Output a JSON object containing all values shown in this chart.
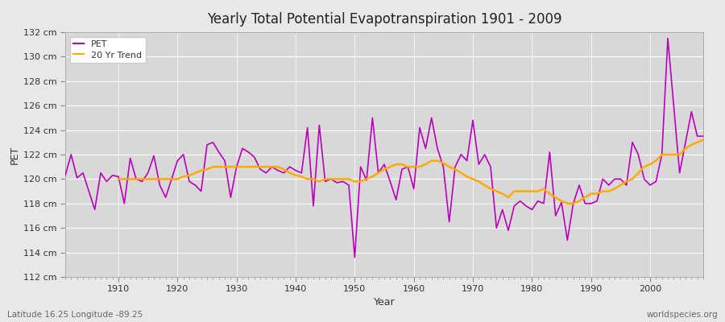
{
  "title": "Yearly Total Potential Evapotranspiration 1901 - 2009",
  "xlabel": "Year",
  "ylabel": "PET",
  "subtitle_left": "Latitude 16.25 Longitude -89.25",
  "subtitle_right": "worldspecies.org",
  "pet_color": "#bb00bb",
  "trend_color": "#ffaa00",
  "fig_bg_color": "#e8e8e8",
  "plot_bg_color": "#d8d8d8",
  "ylim_min": 112,
  "ylim_max": 132,
  "ytick_step": 2,
  "years": [
    1901,
    1902,
    1903,
    1904,
    1905,
    1906,
    1907,
    1908,
    1909,
    1910,
    1911,
    1912,
    1913,
    1914,
    1915,
    1916,
    1917,
    1918,
    1919,
    1920,
    1921,
    1922,
    1923,
    1924,
    1925,
    1926,
    1927,
    1928,
    1929,
    1930,
    1931,
    1932,
    1933,
    1934,
    1935,
    1936,
    1937,
    1938,
    1939,
    1940,
    1941,
    1942,
    1943,
    1944,
    1945,
    1946,
    1947,
    1948,
    1949,
    1950,
    1951,
    1952,
    1953,
    1954,
    1955,
    1956,
    1957,
    1958,
    1959,
    1960,
    1961,
    1962,
    1963,
    1964,
    1965,
    1966,
    1967,
    1968,
    1969,
    1970,
    1971,
    1972,
    1973,
    1974,
    1975,
    1976,
    1977,
    1978,
    1979,
    1980,
    1981,
    1982,
    1983,
    1984,
    1985,
    1986,
    1987,
    1988,
    1989,
    1990,
    1991,
    1992,
    1993,
    1994,
    1995,
    1996,
    1997,
    1998,
    1999,
    2000,
    2001,
    2002,
    2003,
    2004,
    2005,
    2006,
    2007,
    2008,
    2009
  ],
  "pet_values": [
    120.3,
    122.0,
    120.1,
    120.5,
    119.0,
    117.5,
    120.5,
    119.8,
    120.3,
    120.2,
    118.0,
    121.7,
    120.0,
    119.8,
    120.5,
    121.9,
    119.5,
    118.5,
    120.0,
    121.5,
    122.0,
    119.8,
    119.5,
    119.0,
    122.8,
    123.0,
    122.2,
    121.5,
    118.5,
    121.0,
    122.5,
    122.2,
    121.8,
    120.8,
    120.5,
    121.0,
    120.7,
    120.5,
    121.0,
    120.7,
    120.5,
    124.2,
    117.8,
    124.4,
    119.8,
    120.0,
    119.7,
    119.8,
    119.5,
    113.6,
    121.0,
    119.9,
    125.0,
    120.5,
    121.2,
    119.8,
    118.3,
    120.8,
    121.0,
    119.2,
    124.2,
    122.5,
    125.0,
    122.5,
    121.0,
    116.5,
    121.0,
    122.0,
    121.5,
    124.8,
    121.2,
    122.0,
    121.0,
    116.0,
    117.5,
    115.8,
    117.8,
    118.2,
    117.8,
    117.5,
    118.2,
    118.0,
    122.2,
    117.0,
    118.1,
    115.0,
    118.0,
    119.5,
    118.0,
    118.0,
    118.2,
    120.0,
    119.5,
    120.0,
    120.0,
    119.5,
    123.0,
    122.0,
    120.0,
    119.5,
    119.8,
    122.0,
    131.5,
    126.0,
    120.5,
    123.0,
    125.5,
    123.5,
    123.5
  ],
  "trend_years": [
    1910,
    1911,
    1912,
    1913,
    1914,
    1915,
    1916,
    1917,
    1918,
    1919,
    1920,
    1921,
    1922,
    1923,
    1924,
    1925,
    1926,
    1927,
    1928,
    1929,
    1930,
    1931,
    1932,
    1933,
    1934,
    1935,
    1936,
    1937,
    1938,
    1939,
    1940,
    1941,
    1942,
    1943,
    1944,
    1945,
    1946,
    1947,
    1948,
    1949,
    1950,
    1951,
    1952,
    1953,
    1954,
    1955,
    1956,
    1957,
    1958,
    1959,
    1960,
    1961,
    1962,
    1963,
    1964,
    1965,
    1966,
    1967,
    1968,
    1969,
    1970,
    1971,
    1972,
    1973,
    1974,
    1975,
    1976,
    1977,
    1978,
    1979,
    1980,
    1981,
    1982,
    1983,
    1984,
    1985,
    1986,
    1987,
    1988,
    1989,
    1990,
    1991,
    1992,
    1993,
    1994,
    1995,
    1996,
    1997,
    1998,
    1999,
    2000,
    2001,
    2002,
    2003,
    2004,
    2005,
    2006,
    2007,
    2008,
    2009
  ],
  "trend_values": [
    120.0,
    120.0,
    120.0,
    120.0,
    120.0,
    120.0,
    120.0,
    120.0,
    120.0,
    120.0,
    120.0,
    120.2,
    120.3,
    120.5,
    120.7,
    120.8,
    121.0,
    121.0,
    121.0,
    121.0,
    121.0,
    121.0,
    121.0,
    121.0,
    121.0,
    121.0,
    121.0,
    121.0,
    120.8,
    120.5,
    120.3,
    120.2,
    120.0,
    120.0,
    119.8,
    120.0,
    120.0,
    120.0,
    120.0,
    120.0,
    119.8,
    119.8,
    120.0,
    120.2,
    120.5,
    120.8,
    121.0,
    121.2,
    121.2,
    121.0,
    121.0,
    121.0,
    121.2,
    121.5,
    121.5,
    121.3,
    121.0,
    120.8,
    120.5,
    120.2,
    120.0,
    119.8,
    119.5,
    119.2,
    119.0,
    118.8,
    118.5,
    119.0,
    119.0,
    119.0,
    119.0,
    119.0,
    119.2,
    118.8,
    118.5,
    118.2,
    118.0,
    118.0,
    118.2,
    118.5,
    118.8,
    118.8,
    119.0,
    119.0,
    119.2,
    119.5,
    119.8,
    120.0,
    120.5,
    121.0,
    121.2,
    121.5,
    122.0,
    122.0,
    122.0,
    122.0,
    122.5,
    122.8,
    123.0,
    123.2
  ]
}
